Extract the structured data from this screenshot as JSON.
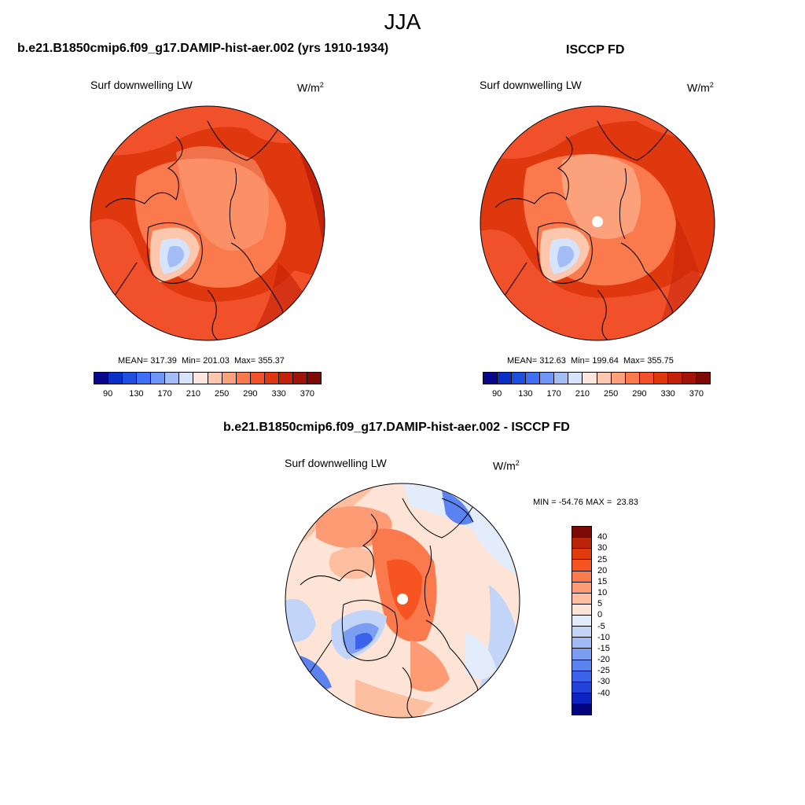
{
  "title": "JJA",
  "panels": {
    "model": {
      "title": "b.e21.B1850cmip6.f09_g17.DAMIP-hist-aer.002 (yrs 1910-1934)",
      "variable": "Surf downwelling LW",
      "units_base": "W/m",
      "units_exp": "2",
      "stats": "MEAN= 317.39  Min= 201.03  Max= 355.37"
    },
    "obs": {
      "title": "ISCCP FD",
      "variable": "Surf downwelling LW",
      "units_base": "W/m",
      "units_exp": "2",
      "stats": "MEAN= 312.63  Min= 199.64  Max= 355.75"
    },
    "diff": {
      "title": "b.e21.B1850cmip6.f09_g17.DAMIP-hist-aer.002 - ISCCP FD",
      "variable": "Surf downwelling LW",
      "units_base": "W/m",
      "units_exp": "2",
      "stats": "MIN = -54.76 MAX =  23.83"
    }
  },
  "colorbar_abs": {
    "colors": [
      "#08088a",
      "#0a2fc4",
      "#1f4fe0",
      "#3f6ff5",
      "#6e95f7",
      "#a3bdf7",
      "#d6e3fb",
      "#fde6dc",
      "#fcc7ad",
      "#fba27c",
      "#fa7a4e",
      "#f0512a",
      "#e0380e",
      "#c22208",
      "#a21307",
      "#7d0a04"
    ],
    "tick_labels": [
      "90",
      "130",
      "170",
      "210",
      "250",
      "290",
      "330",
      "370"
    ]
  },
  "colorbar_diff": {
    "colors": [
      "#7d0a04",
      "#bb2507",
      "#e03a0d",
      "#f65420",
      "#fa7a4e",
      "#fc9b74",
      "#fdbf9f",
      "#fde4d6",
      "#e3ecfb",
      "#c2d5f8",
      "#a0bbf4",
      "#7c9ef2",
      "#5a82f0",
      "#3a62ea",
      "#2443dd",
      "#0d22c2",
      "#03047f"
    ],
    "tick_labels": [
      "40",
      "30",
      "25",
      "20",
      "15",
      "10",
      "5",
      "0",
      "-5",
      "-10",
      "-15",
      "-20",
      "-25",
      "-30",
      "-40"
    ]
  }
}
